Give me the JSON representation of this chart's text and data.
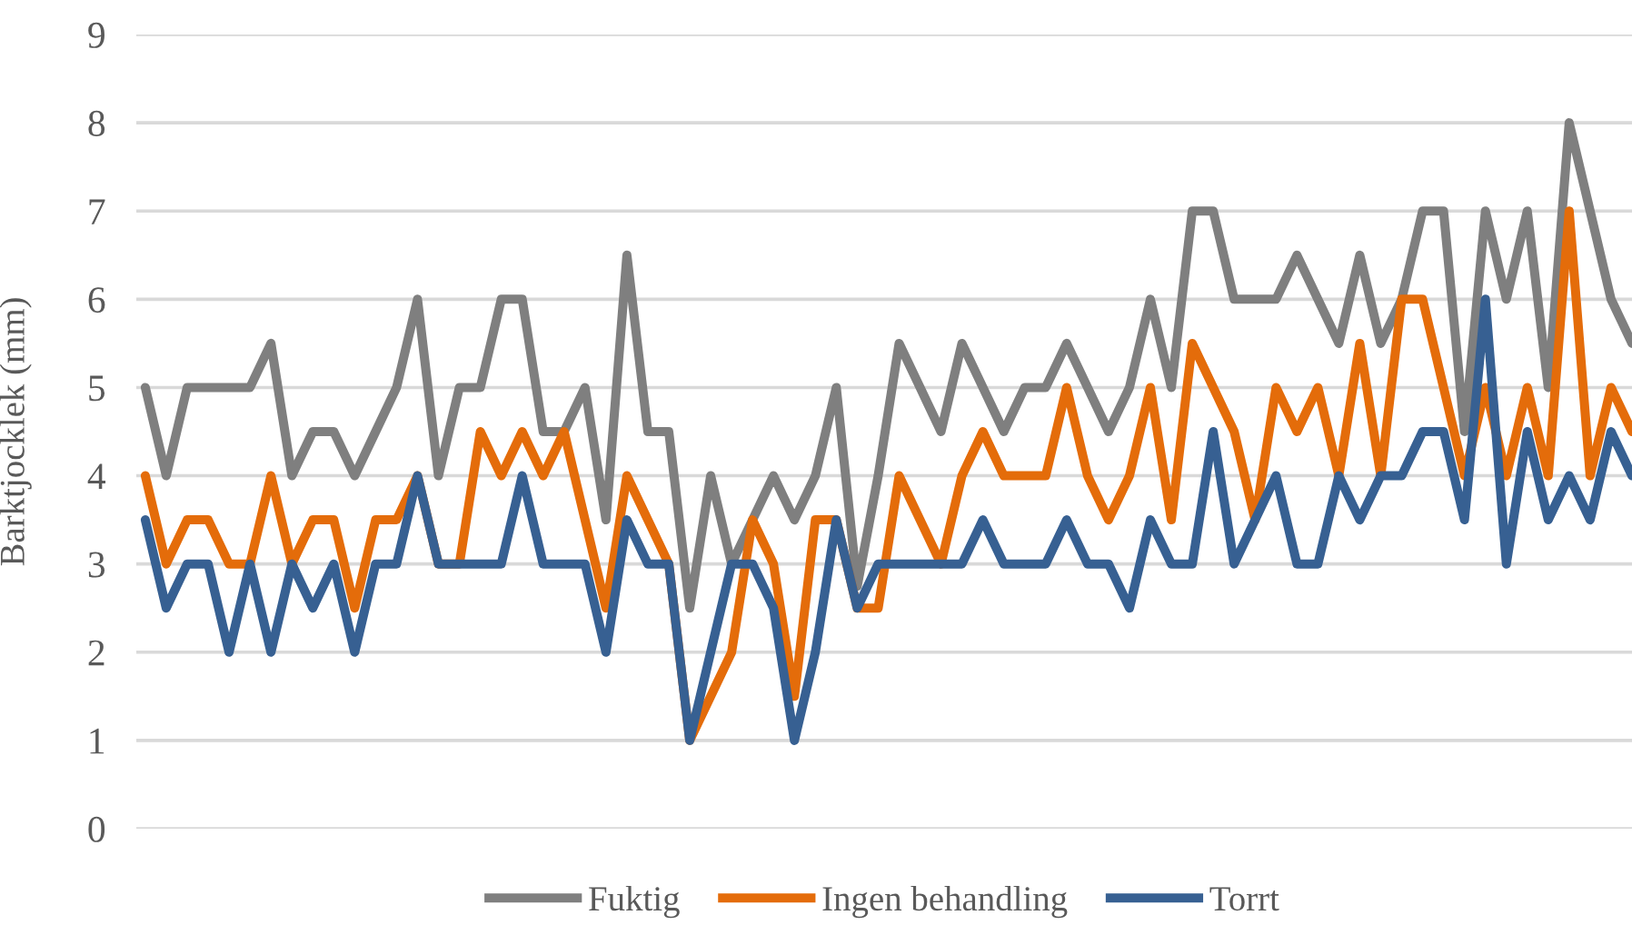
{
  "chart_data": {
    "type": "line",
    "ylabel": "Barktjocklek (mm)",
    "categories": [
      null,
      null,
      null,
      null,
      null,
      null,
      null,
      null,
      null,
      null,
      null,
      null,
      null,
      null,
      null,
      null,
      null,
      null,
      null,
      null,
      null,
      null,
      null,
      null,
      null,
      null,
      null,
      null,
      null,
      null,
      null,
      null,
      null,
      null,
      null,
      null,
      null,
      null,
      null,
      null,
      null,
      null,
      null,
      null,
      null,
      null,
      null,
      null,
      null,
      null,
      null,
      null,
      null,
      null,
      null,
      null,
      null,
      null,
      null,
      null,
      null,
      null,
      null,
      null,
      null,
      null,
      null,
      null,
      null,
      null,
      null,
      null
    ],
    "series": [
      {
        "name": "Fuktig",
        "color": "#7f7f7f",
        "values": [
          5,
          4,
          5,
          5,
          5,
          5,
          5.5,
          4,
          4.5,
          4.5,
          4,
          4.5,
          5,
          6,
          4,
          5,
          5,
          6,
          6,
          4.5,
          4.5,
          5,
          3.5,
          6.5,
          4.5,
          4.5,
          2.5,
          4,
          3,
          3.5,
          4,
          3.5,
          4,
          5,
          2.75,
          4,
          5.5,
          5,
          4.5,
          5.5,
          5,
          4.5,
          5,
          5,
          5.5,
          5,
          4.5,
          5,
          6,
          5,
          7,
          7,
          6,
          6,
          6,
          6.5,
          6,
          5.5,
          6.5,
          5.5,
          6,
          7,
          7,
          4.5,
          7,
          6,
          7,
          5,
          8,
          7,
          6,
          5.5
        ]
      },
      {
        "name": "Ingen behandling",
        "color": "#e46c0a",
        "values": [
          4,
          3,
          3.5,
          3.5,
          3,
          3,
          4,
          3,
          3.5,
          3.5,
          2.5,
          3.5,
          3.5,
          4,
          3,
          3,
          4.5,
          4,
          4.5,
          4,
          4.5,
          3.5,
          2.5,
          4,
          3.5,
          3,
          1,
          1.5,
          2,
          3.5,
          3,
          1.5,
          3.5,
          3.5,
          2.5,
          2.5,
          4,
          3.5,
          3,
          4,
          4.5,
          4,
          4,
          4,
          5,
          4,
          3.5,
          4,
          5,
          3.5,
          5.5,
          5,
          4.5,
          3.5,
          5,
          4.5,
          5,
          4,
          5.5,
          4,
          6,
          6,
          5,
          4,
          5,
          4,
          5,
          4,
          7,
          4,
          5,
          4.5
        ]
      },
      {
        "name": "Torrt",
        "color": "#376092",
        "values": [
          3.5,
          2.5,
          3,
          3,
          2,
          3,
          2,
          3,
          2.5,
          3,
          2,
          3,
          3,
          4,
          3,
          3,
          3,
          3,
          4,
          3,
          3,
          3,
          2,
          3.5,
          3,
          3,
          1,
          2,
          3,
          3,
          2.5,
          1,
          2,
          3.5,
          2.5,
          3,
          3,
          3,
          3,
          3,
          3.5,
          3,
          3,
          3,
          3.5,
          3,
          3,
          2.5,
          3.5,
          3,
          3,
          4.5,
          3,
          3.5,
          4,
          3,
          3,
          4,
          3.5,
          4,
          4,
          4.5,
          4.5,
          3.5,
          6,
          3,
          4.5,
          3.5,
          4,
          3.5,
          4.5,
          4
        ]
      }
    ],
    "ylim": [
      0,
      9
    ],
    "yticks": [
      0,
      1,
      2,
      3,
      4,
      5,
      6,
      7,
      8,
      9
    ],
    "grid": "y",
    "legend": "bottom",
    "marker": "none",
    "line_style": "solid"
  }
}
